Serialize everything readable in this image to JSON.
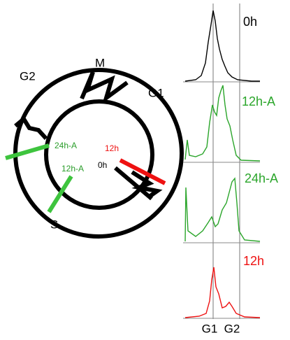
{
  "diagram": {
    "phases": {
      "m": "M",
      "g1": "G1",
      "g2": "G2",
      "s": "S"
    },
    "markers": {
      "late": "24h-A",
      "mid": "12h-A",
      "red": "12h",
      "start": "0h"
    },
    "panels": [
      "0h",
      "12h-A",
      "24h-A",
      "12h"
    ],
    "axis_labels": [
      "G1",
      "G2"
    ]
  }
}
